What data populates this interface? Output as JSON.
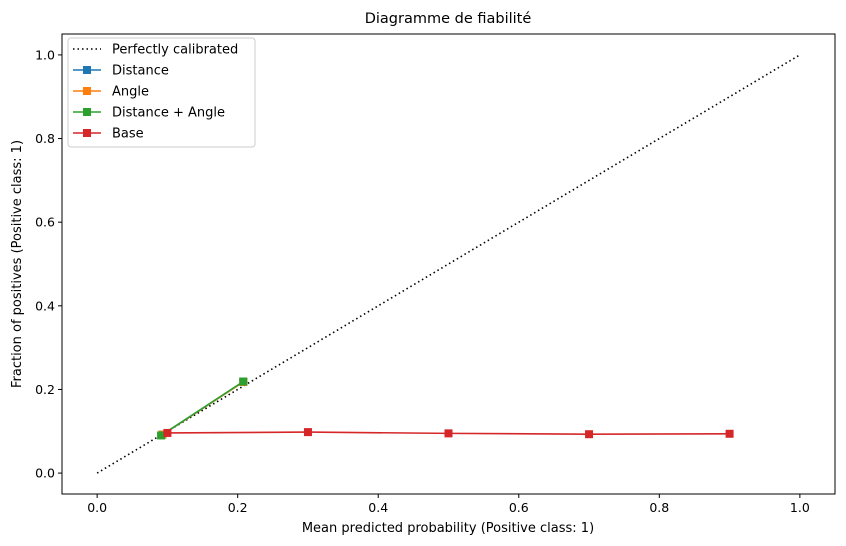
{
  "chart_data": {
    "type": "line",
    "title": "Diagramme de fiabilité",
    "xlabel": "Mean predicted probability (Positive class: 1)",
    "ylabel": "Fraction of positives (Positive class: 1)",
    "xlim": [
      -0.05,
      1.05
    ],
    "ylim": [
      -0.05,
      1.05
    ],
    "xticks": [
      "0.0",
      "0.2",
      "0.4",
      "0.6",
      "0.8",
      "1.0"
    ],
    "yticks": [
      "0.0",
      "0.2",
      "0.4",
      "0.6",
      "0.8",
      "1.0"
    ],
    "grid": false,
    "legend_position": "upper-left",
    "reference": {
      "name": "Perfectly calibrated",
      "style": "dotted",
      "color": "#000000",
      "x": [
        0,
        1
      ],
      "y": [
        0,
        1
      ]
    },
    "series": [
      {
        "name": "Distance",
        "color": "#1f77b4",
        "x": [
          0.093,
          0.208
        ],
        "y": [
          0.092,
          0.218
        ]
      },
      {
        "name": "Angle",
        "color": "#ff7f0e",
        "x": [
          0.093,
          0.208
        ],
        "y": [
          0.092,
          0.218
        ]
      },
      {
        "name": "Distance + Angle",
        "color": "#2ca02c",
        "x": [
          0.091,
          0.208
        ],
        "y": [
          0.09,
          0.219
        ]
      },
      {
        "name": "Base",
        "color": "#d62728",
        "x": [
          0.1,
          0.3,
          0.5,
          0.7,
          0.9
        ],
        "y": [
          0.096,
          0.098,
          0.095,
          0.093,
          0.094
        ]
      }
    ]
  }
}
